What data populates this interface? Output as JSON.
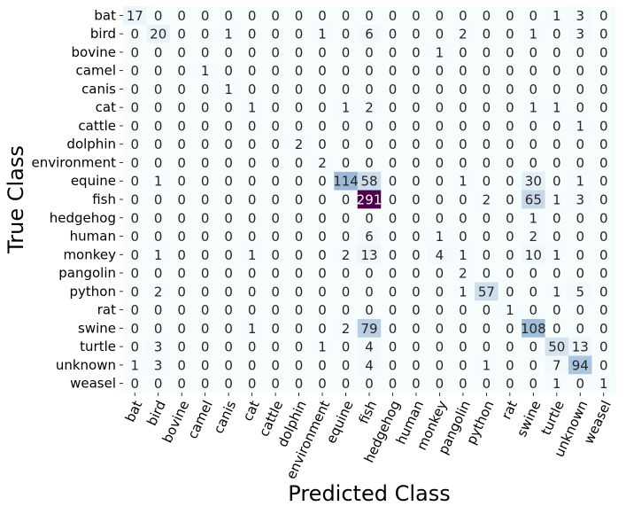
{
  "chart_data": {
    "type": "heatmap",
    "xlabel": "Predicted Class",
    "ylabel": "True Class",
    "colorbar": false,
    "colormap": "BuPu",
    "color_low": "#f7fcfd",
    "color_high": "#4d004b",
    "value_range": [
      0,
      291
    ],
    "classes": [
      "bat",
      "bird",
      "bovine",
      "camel",
      "canis",
      "cat",
      "cattle",
      "dolphin",
      "environment",
      "equine",
      "fish",
      "hedgehog",
      "human",
      "monkey",
      "pangolin",
      "python",
      "rat",
      "swine",
      "turtle",
      "unknown",
      "weasel"
    ],
    "matrix": [
      [
        17,
        0,
        0,
        0,
        0,
        0,
        0,
        0,
        0,
        0,
        0,
        0,
        0,
        0,
        0,
        0,
        0,
        0,
        1,
        3,
        0
      ],
      [
        0,
        20,
        0,
        0,
        1,
        0,
        0,
        0,
        1,
        0,
        6,
        0,
        0,
        0,
        2,
        0,
        0,
        1,
        0,
        3,
        0
      ],
      [
        0,
        0,
        0,
        0,
        0,
        0,
        0,
        0,
        0,
        0,
        0,
        0,
        0,
        1,
        0,
        0,
        0,
        0,
        0,
        0,
        0
      ],
      [
        0,
        0,
        0,
        1,
        0,
        0,
        0,
        0,
        0,
        0,
        0,
        0,
        0,
        0,
        0,
        0,
        0,
        0,
        0,
        0,
        0
      ],
      [
        0,
        0,
        0,
        0,
        1,
        0,
        0,
        0,
        0,
        0,
        0,
        0,
        0,
        0,
        0,
        0,
        0,
        0,
        0,
        0,
        0
      ],
      [
        0,
        0,
        0,
        0,
        0,
        1,
        0,
        0,
        0,
        1,
        2,
        0,
        0,
        0,
        0,
        0,
        0,
        1,
        1,
        0,
        0
      ],
      [
        0,
        0,
        0,
        0,
        0,
        0,
        0,
        0,
        0,
        0,
        0,
        0,
        0,
        0,
        0,
        0,
        0,
        0,
        0,
        1,
        0
      ],
      [
        0,
        0,
        0,
        0,
        0,
        0,
        0,
        2,
        0,
        0,
        0,
        0,
        0,
        0,
        0,
        0,
        0,
        0,
        0,
        0,
        0
      ],
      [
        0,
        0,
        0,
        0,
        0,
        0,
        0,
        0,
        2,
        0,
        0,
        0,
        0,
        0,
        0,
        0,
        0,
        0,
        0,
        0,
        0
      ],
      [
        0,
        1,
        0,
        0,
        0,
        0,
        0,
        0,
        0,
        114,
        58,
        0,
        0,
        0,
        1,
        0,
        0,
        30,
        0,
        1,
        0
      ],
      [
        0,
        0,
        0,
        0,
        0,
        0,
        0,
        0,
        0,
        0,
        291,
        0,
        0,
        0,
        0,
        2,
        0,
        65,
        1,
        3,
        0
      ],
      [
        0,
        0,
        0,
        0,
        0,
        0,
        0,
        0,
        0,
        0,
        0,
        0,
        0,
        0,
        0,
        0,
        0,
        1,
        0,
        0,
        0
      ],
      [
        0,
        0,
        0,
        0,
        0,
        0,
        0,
        0,
        0,
        0,
        6,
        0,
        0,
        1,
        0,
        0,
        0,
        2,
        0,
        0,
        0
      ],
      [
        0,
        1,
        0,
        0,
        0,
        1,
        0,
        0,
        0,
        2,
        13,
        0,
        0,
        4,
        1,
        0,
        0,
        10,
        1,
        0,
        0
      ],
      [
        0,
        0,
        0,
        0,
        0,
        0,
        0,
        0,
        0,
        0,
        0,
        0,
        0,
        0,
        2,
        0,
        0,
        0,
        0,
        0,
        0
      ],
      [
        0,
        2,
        0,
        0,
        0,
        0,
        0,
        0,
        0,
        0,
        0,
        0,
        0,
        0,
        1,
        57,
        0,
        0,
        1,
        5,
        0
      ],
      [
        0,
        0,
        0,
        0,
        0,
        0,
        0,
        0,
        0,
        0,
        0,
        0,
        0,
        0,
        0,
        0,
        1,
        0,
        0,
        0,
        0
      ],
      [
        0,
        0,
        0,
        0,
        0,
        1,
        0,
        0,
        0,
        2,
        79,
        0,
        0,
        0,
        0,
        0,
        0,
        108,
        0,
        0,
        0
      ],
      [
        0,
        3,
        0,
        0,
        0,
        0,
        0,
        0,
        1,
        0,
        4,
        0,
        0,
        0,
        0,
        0,
        0,
        0,
        50,
        13,
        0
      ],
      [
        1,
        3,
        0,
        0,
        0,
        0,
        0,
        0,
        0,
        0,
        4,
        0,
        0,
        0,
        0,
        1,
        0,
        0,
        7,
        94,
        0
      ],
      [
        0,
        0,
        0,
        0,
        0,
        0,
        0,
        0,
        0,
        0,
        0,
        0,
        0,
        0,
        0,
        0,
        0,
        0,
        1,
        0,
        1
      ]
    ]
  }
}
